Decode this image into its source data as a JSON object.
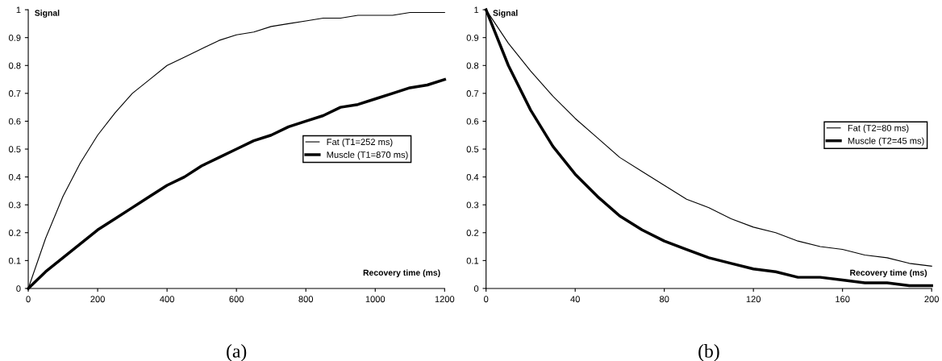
{
  "chart_data": [
    {
      "type": "line",
      "ylabel": "Signal",
      "xlabel": "Recovery time (ms)",
      "annotations": [
        "(a)"
      ],
      "x": [
        0,
        50,
        100,
        150,
        200,
        250,
        300,
        350,
        400,
        450,
        500,
        550,
        600,
        650,
        700,
        750,
        800,
        850,
        900,
        950,
        1000,
        1050,
        1100,
        1150,
        1200
      ],
      "series": [
        {
          "name": "Fat (T1=252 ms)",
          "color": "#000000",
          "values": [
            0,
            0.18,
            0.33,
            0.45,
            0.55,
            0.63,
            0.7,
            0.75,
            0.8,
            0.83,
            0.86,
            0.89,
            0.91,
            0.92,
            0.94,
            0.95,
            0.96,
            0.97,
            0.97,
            0.98,
            0.98,
            0.98,
            0.99,
            0.99,
            0.99
          ]
        },
        {
          "name": "Muscle (T1=870 ms)",
          "color": "#000000",
          "values": [
            0,
            0.06,
            0.11,
            0.16,
            0.21,
            0.25,
            0.29,
            0.33,
            0.37,
            0.4,
            0.44,
            0.47,
            0.5,
            0.53,
            0.55,
            0.58,
            0.6,
            0.62,
            0.65,
            0.66,
            0.68,
            0.7,
            0.72,
            0.73,
            0.75
          ]
        }
      ],
      "xlim": [
        0,
        1200
      ],
      "xticks": [
        0,
        200,
        400,
        600,
        800,
        1000,
        1200
      ],
      "ylim": [
        0,
        1
      ],
      "yticks": [
        0,
        0.1,
        0.2,
        0.3,
        0.4,
        0.5,
        0.6,
        0.7,
        0.8,
        0.9,
        1
      ],
      "grid": false,
      "legend": "center right",
      "marker": "none",
      "line_style": "solid"
    },
    {
      "type": "line",
      "ylabel": "Signal",
      "xlabel": "Recovery time (ms)",
      "annotations": [
        "(b)"
      ],
      "x": [
        0,
        10,
        20,
        30,
        40,
        50,
        60,
        70,
        80,
        90,
        100,
        110,
        120,
        130,
        140,
        150,
        160,
        170,
        180,
        190,
        200
      ],
      "series": [
        {
          "name": "Fat (T2=80 ms)",
          "color": "#000000",
          "values": [
            1,
            0.88,
            0.78,
            0.69,
            0.61,
            0.54,
            0.47,
            0.42,
            0.37,
            0.32,
            0.29,
            0.25,
            0.22,
            0.2,
            0.17,
            0.15,
            0.14,
            0.12,
            0.11,
            0.09,
            0.08
          ]
        },
        {
          "name": "Muscle (T2=45 ms)",
          "color": "#000000",
          "values": [
            1,
            0.8,
            0.64,
            0.51,
            0.41,
            0.33,
            0.26,
            0.21,
            0.17,
            0.14,
            0.11,
            0.09,
            0.07,
            0.06,
            0.04,
            0.04,
            0.03,
            0.02,
            0.02,
            0.01,
            0.01
          ]
        }
      ],
      "xlim": [
        0,
        200
      ],
      "xticks": [
        0,
        40,
        80,
        120,
        160,
        200
      ],
      "ylim": [
        0,
        1
      ],
      "yticks": [
        0,
        0.1,
        0.2,
        0.3,
        0.4,
        0.5,
        0.6,
        0.7,
        0.8,
        0.9,
        1
      ],
      "grid": false,
      "legend": "center right",
      "marker": "none",
      "line_style": "solid"
    }
  ]
}
